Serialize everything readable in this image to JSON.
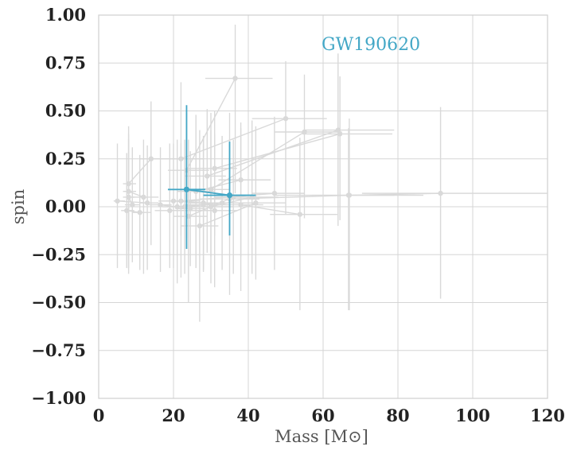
{
  "colors": {
    "highlight": "#43a7c6",
    "background_series": "#d9d9d9",
    "grid": "#d5d5d5",
    "text": "#222222"
  },
  "chart_data": {
    "type": "scatter",
    "title": "",
    "xlabel": "Mass [M⊙]",
    "ylabel": "spin",
    "xlim": [
      0,
      120
    ],
    "ylim": [
      -1.0,
      1.0
    ],
    "xticks": [
      0,
      20,
      40,
      60,
      80,
      100,
      120
    ],
    "xtick_labels": [
      "0",
      "20",
      "40",
      "60",
      "80",
      "100",
      "120"
    ],
    "yticks": [
      -1.0,
      -0.75,
      -0.5,
      -0.25,
      0.0,
      0.25,
      0.5,
      0.75,
      1.0
    ],
    "ytick_labels": [
      "−1.00",
      "−0.75",
      "−0.50",
      "−0.25",
      "0.00",
      "0.25",
      "0.50",
      "0.75",
      "1.00"
    ],
    "grid": true,
    "annotation": {
      "text": "GW190620"
    },
    "series": [
      {
        "highlight": false,
        "pairs": [
          [
            {
              "x": 36.5,
              "y": 0.67,
              "xerr": [
                8,
                10
              ],
              "yerr": [
                0.6,
                0.28
              ]
            },
            {
              "x": 23.5,
              "y": 0.19,
              "xerr": [
                5,
                6
              ],
              "yerr": [
                0.35,
                0.3
              ]
            }
          ],
          [
            {
              "x": 50,
              "y": 0.46,
              "xerr": [
                9,
                11
              ],
              "yerr": [
                0.5,
                0.3
              ]
            },
            {
              "x": 22,
              "y": 0.25,
              "xerr": [
                5,
                6
              ],
              "yerr": [
                0.4,
                0.4
              ]
            }
          ],
          [
            {
              "x": 64,
              "y": 0.4,
              "xerr": [
                9,
                15
              ],
              "yerr": [
                0.5,
                0.4
              ]
            },
            {
              "x": 29,
              "y": 0.16,
              "xerr": [
                6,
                5
              ],
              "yerr": [
                0.4,
                0.35
              ]
            }
          ],
          [
            {
              "x": 64.5,
              "y": 0.38,
              "xerr": [
                10,
                14
              ],
              "yerr": [
                0.45,
                0.3
              ]
            },
            {
              "x": 31,
              "y": 0.2,
              "xerr": [
                7,
                6
              ],
              "yerr": [
                0.35,
                0.3
              ]
            }
          ],
          [
            {
              "x": 55,
              "y": 0.39,
              "xerr": [
                8,
                10
              ],
              "yerr": [
                0.45,
                0.3
              ]
            },
            {
              "x": 30,
              "y": 0.09,
              "xerr": [
                6,
                5
              ],
              "yerr": [
                0.35,
                0.4
              ]
            }
          ],
          [
            {
              "x": 91.4,
              "y": 0.07,
              "xerr": [
                21,
                30
              ],
              "yerr": [
                0.55,
                0.45
              ]
            },
            {
              "x": 66.8,
              "y": 0.06,
              "xerr": [
                20,
                20
              ],
              "yerr": [
                0.6,
                0.35
              ]
            }
          ],
          [
            {
              "x": 67,
              "y": 0.06,
              "xerr": [
                10,
                12
              ],
              "yerr": [
                0.6,
                0.4
              ]
            },
            {
              "x": 35,
              "y": 0.04,
              "xerr": [
                8,
                8
              ],
              "yerr": [
                0.5,
                0.45
              ]
            }
          ],
          [
            {
              "x": 53.8,
              "y": -0.04,
              "xerr": [
                8,
                10
              ],
              "yerr": [
                0.5,
                0.4
              ]
            },
            {
              "x": 38,
              "y": 0.01,
              "xerr": [
                7,
                6
              ],
              "yerr": [
                0.45,
                0.4
              ]
            }
          ],
          [
            {
              "x": 47,
              "y": 0.07,
              "xerr": [
                6,
                8
              ],
              "yerr": [
                0.4,
                0.4
              ]
            },
            {
              "x": 22,
              "y": 0.03,
              "xerr": [
                4,
                5
              ],
              "yerr": [
                0.4,
                0.3
              ]
            }
          ],
          [
            {
              "x": 42,
              "y": 0.02,
              "xerr": [
                6,
                8
              ],
              "yerr": [
                0.4,
                0.4
              ]
            },
            {
              "x": 27,
              "y": -0.1,
              "xerr": [
                5,
                5
              ],
              "yerr": [
                0.5,
                0.5
              ]
            }
          ],
          [
            {
              "x": 41,
              "y": 0.05,
              "xerr": [
                6,
                7
              ],
              "yerr": [
                0.4,
                0.4
              ]
            },
            {
              "x": 30,
              "y": 0.0,
              "xerr": [
                5,
                6
              ],
              "yerr": [
                0.4,
                0.4
              ]
            }
          ],
          [
            {
              "x": 38,
              "y": 0.14,
              "xerr": [
                6,
                8
              ],
              "yerr": [
                0.4,
                0.3
              ]
            },
            {
              "x": 26,
              "y": 0.08,
              "xerr": [
                5,
                5
              ],
              "yerr": [
                0.4,
                0.4
              ]
            }
          ],
          [
            {
              "x": 36,
              "y": 0.05,
              "xerr": [
                5,
                6
              ],
              "yerr": [
                0.4,
                0.3
              ]
            },
            {
              "x": 24,
              "y": -0.05,
              "xerr": [
                4,
                5
              ],
              "yerr": [
                0.45,
                0.4
              ]
            }
          ],
          [
            {
              "x": 33,
              "y": 0.02,
              "xerr": [
                5,
                6
              ],
              "yerr": [
                0.35,
                0.35
              ]
            },
            {
              "x": 21,
              "y": 0.0,
              "xerr": [
                4,
                4
              ],
              "yerr": [
                0.4,
                0.35
              ]
            }
          ],
          [
            {
              "x": 31,
              "y": -0.02,
              "xerr": [
                5,
                6
              ],
              "yerr": [
                0.4,
                0.4
              ]
            },
            {
              "x": 19,
              "y": -0.02,
              "xerr": [
                4,
                5
              ],
              "yerr": [
                0.3,
                0.35
              ]
            }
          ],
          [
            {
              "x": 28,
              "y": 0.02,
              "xerr": [
                4,
                5
              ],
              "yerr": [
                0.35,
                0.35
              ]
            },
            {
              "x": 20,
              "y": 0.03,
              "xerr": [
                4,
                4
              ],
              "yerr": [
                0.35,
                0.3
              ]
            }
          ],
          [
            {
              "x": 28,
              "y": 0.01,
              "xerr": [
                5,
                5
              ],
              "yerr": [
                0.35,
                0.35
              ]
            },
            {
              "x": 23,
              "y": 0.0,
              "xerr": [
                4,
                4
              ],
              "yerr": [
                0.35,
                0.35
              ]
            }
          ],
          [
            {
              "x": 24.5,
              "y": -0.01,
              "xerr": [
                4,
                4
              ],
              "yerr": [
                0.3,
                0.3
              ]
            },
            {
              "x": 16.5,
              "y": 0.01,
              "xerr": [
                3,
                3
              ],
              "yerr": [
                0.35,
                0.3
              ]
            }
          ],
          [
            {
              "x": 14,
              "y": 0.25,
              "xerr": [
                3,
                5
              ],
              "yerr": [
                0.45,
                0.3
              ]
            },
            {
              "x": 8,
              "y": 0.12,
              "xerr": [
                1.5,
                2
              ],
              "yerr": [
                0.35,
                0.3
              ]
            }
          ],
          [
            {
              "x": 12,
              "y": 0.05,
              "xerr": [
                3,
                4
              ],
              "yerr": [
                0.4,
                0.3
              ]
            },
            {
              "x": 8,
              "y": 0.08,
              "xerr": [
                1.5,
                2
              ],
              "yerr": [
                0.4,
                0.3
              ]
            }
          ],
          [
            {
              "x": 11,
              "y": -0.03,
              "xerr": [
                2,
                3
              ],
              "yerr": [
                0.3,
                0.3
              ]
            },
            {
              "x": 7.5,
              "y": -0.02,
              "xerr": [
                1.5,
                2
              ],
              "yerr": [
                0.3,
                0.3
              ]
            }
          ],
          [
            {
              "x": 13,
              "y": 0.02,
              "xerr": [
                2,
                3
              ],
              "yerr": [
                0.35,
                0.3
              ]
            },
            {
              "x": 5,
              "y": 0.03,
              "xerr": [
                1,
                2
              ],
              "yerr": [
                0.35,
                0.3
              ]
            }
          ],
          [
            {
              "x": 9,
              "y": 0.01,
              "xerr": [
                2,
                2
              ],
              "yerr": [
                0.3,
                0.3
              ]
            },
            {
              "x": 8,
              "y": 0.05,
              "xerr": [
                1.5,
                1.5
              ],
              "yerr": [
                0.4,
                0.3
              ]
            }
          ]
        ]
      },
      {
        "highlight": true,
        "pairs": [
          [
            {
              "x": 35,
              "y": 0.06,
              "xerr": [
                7,
                7
              ],
              "yerr": [
                0.21,
                0.28
              ]
            },
            {
              "x": 23.5,
              "y": 0.09,
              "xerr": [
                5,
                5
              ],
              "yerr": [
                0.31,
                0.44
              ]
            }
          ]
        ]
      }
    ]
  }
}
